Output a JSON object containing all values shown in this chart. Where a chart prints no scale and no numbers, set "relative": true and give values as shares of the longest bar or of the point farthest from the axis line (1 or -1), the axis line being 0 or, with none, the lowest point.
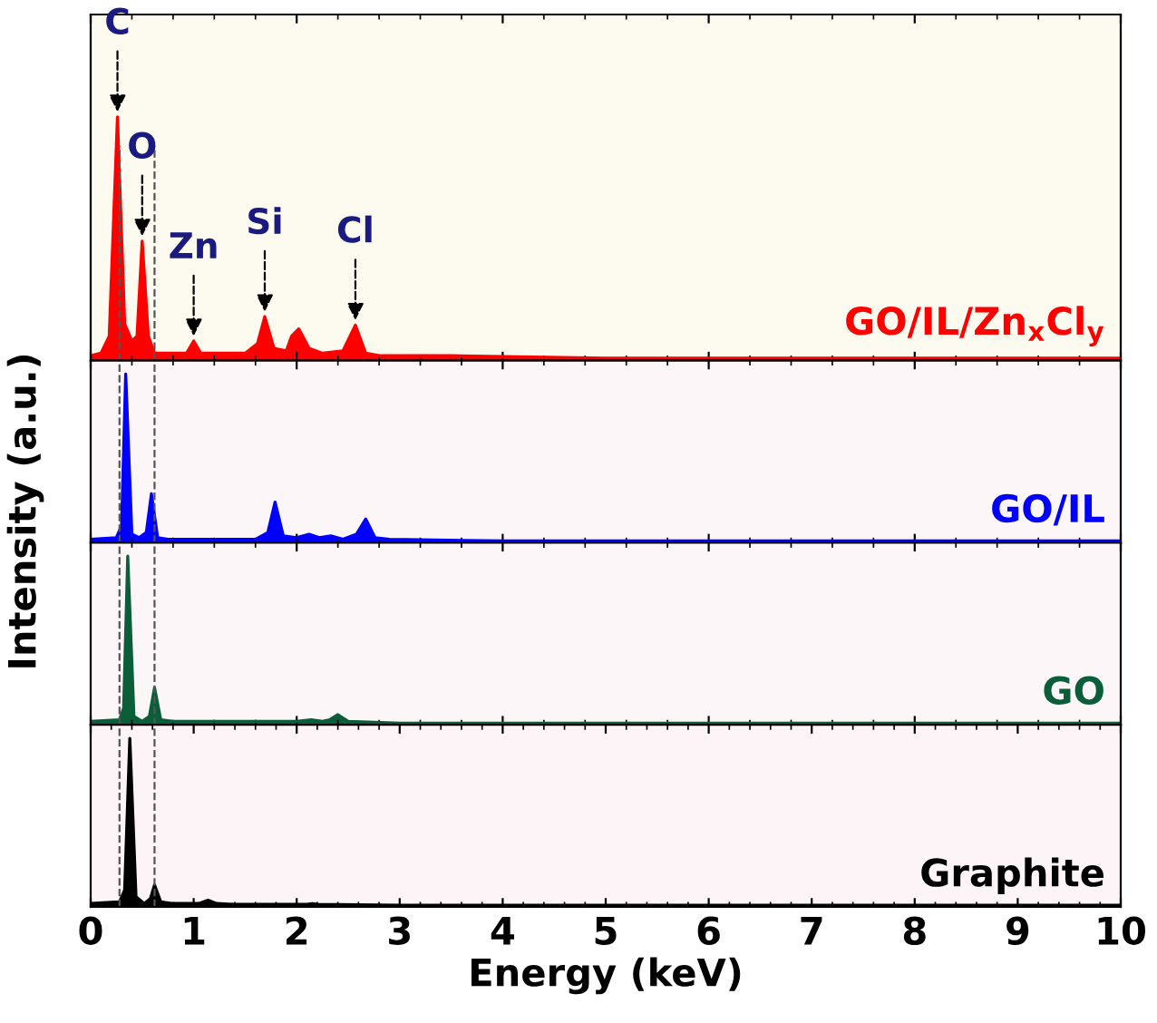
{
  "chart_data": [
    {
      "type": "area",
      "relative": true,
      "xlim": [
        0,
        10
      ],
      "tick_labels": false,
      "ylabel": "Intensity (a.u.)",
      "grid": false,
      "series": [
        {
          "name": "GO/IL/Zn$_{x}$Cl$_{y}$",
          "color": "#ff0000",
          "x": [
            0,
            0.1,
            0.18,
            0.26,
            0.33,
            0.4,
            0.45,
            0.5,
            0.56,
            0.62,
            0.8,
            0.93,
            1.0,
            1.07,
            1.2,
            1.5,
            1.62,
            1.69,
            1.78,
            1.9,
            1.95,
            2.02,
            2.12,
            2.25,
            2.45,
            2.57,
            2.67,
            2.8,
            3.5,
            5,
            7,
            10
          ],
          "values": [
            0.02,
            0.03,
            0.1,
            1,
            0.15,
            0.08,
            0.1,
            0.49,
            0.1,
            0.03,
            0.03,
            0.03,
            0.08,
            0.03,
            0.03,
            0.03,
            0.07,
            0.18,
            0.05,
            0.04,
            0.1,
            0.13,
            0.05,
            0.03,
            0.04,
            0.145,
            0.03,
            0.02,
            0.02,
            0.01,
            0.01,
            0.01
          ]
        }
      ],
      "ref_lines": [
        {
          "axis": "x",
          "value": 0.28,
          "color": "#555555",
          "line_style": "dashed"
        },
        {
          "axis": "x",
          "value": 0.62,
          "color": "#555555",
          "line_style": "dashed"
        }
      ],
      "annotations": [
        {
          "text": "C",
          "x": 0.26,
          "y": 1
        },
        {
          "text": "O",
          "x": 0.5,
          "y": 0.49
        },
        {
          "text": "Zn",
          "x": 1.0,
          "y": 0.08
        },
        {
          "text": "Si",
          "x": 1.69,
          "y": 0.18
        },
        {
          "text": "Cl",
          "x": 2.57,
          "y": 0.145
        }
      ]
    },
    {
      "type": "area",
      "relative": true,
      "xlim": [
        0,
        10
      ],
      "tick_labels": false,
      "grid": false,
      "series": [
        {
          "name": "GO/IL",
          "color": "#0000ff",
          "x": [
            0,
            0.25,
            0.3,
            0.34,
            0.4,
            0.47,
            0.54,
            0.59,
            0.65,
            0.75,
            1.6,
            1.72,
            1.79,
            1.87,
            2.0,
            2.12,
            2.22,
            2.33,
            2.45,
            2.58,
            2.67,
            2.76,
            2.9,
            4,
            10
          ],
          "values": [
            0.02,
            0.03,
            0.1,
            1,
            0.05,
            0.03,
            0.06,
            0.29,
            0.03,
            0.02,
            0.02,
            0.06,
            0.24,
            0.04,
            0.03,
            0.05,
            0.03,
            0.04,
            0.02,
            0.05,
            0.14,
            0.03,
            0.02,
            0.01,
            0.01
          ]
        }
      ],
      "ref_lines": [
        {
          "axis": "x",
          "value": 0.28,
          "color": "#555555",
          "line_style": "dashed"
        },
        {
          "axis": "x",
          "value": 0.62,
          "color": "#555555",
          "line_style": "dashed"
        }
      ]
    },
    {
      "type": "area",
      "relative": true,
      "xlim": [
        0,
        10
      ],
      "tick_labels": false,
      "grid": false,
      "series": [
        {
          "name": "GO",
          "color": "#0b5e3a",
          "x": [
            0,
            0.28,
            0.32,
            0.36,
            0.42,
            0.5,
            0.57,
            0.62,
            0.68,
            0.8,
            1.5,
            2.0,
            2.14,
            2.25,
            2.32,
            2.4,
            2.5,
            3,
            10
          ],
          "values": [
            0.02,
            0.03,
            0.1,
            1,
            0.05,
            0.02,
            0.05,
            0.22,
            0.03,
            0.02,
            0.02,
            0.02,
            0.03,
            0.02,
            0.03,
            0.06,
            0.02,
            0.01,
            0.01
          ]
        }
      ],
      "ref_lines": [
        {
          "axis": "x",
          "value": 0.28,
          "color": "#555555",
          "line_style": "dashed"
        },
        {
          "axis": "x",
          "value": 0.62,
          "color": "#555555",
          "line_style": "dashed"
        }
      ]
    },
    {
      "type": "area",
      "relative": true,
      "xlim": [
        0,
        10
      ],
      "xticks": [
        0,
        1,
        2,
        3,
        4,
        5,
        6,
        7,
        8,
        9,
        10
      ],
      "tick_labels": "x",
      "xlabel": "Energy (keV)",
      "grid": false,
      "series": [
        {
          "name": "Graphite",
          "color": "#000000",
          "x": [
            0,
            0.28,
            0.33,
            0.38,
            0.44,
            0.52,
            0.58,
            0.62,
            0.68,
            0.8,
            1.05,
            1.14,
            1.22,
            1.4,
            2.1,
            2.15,
            2.2,
            3,
            10
          ],
          "values": [
            0.02,
            0.03,
            0.1,
            1,
            0.06,
            0.02,
            0.05,
            0.13,
            0.03,
            0.02,
            0.02,
            0.04,
            0.02,
            0.015,
            0.015,
            0.02,
            0.015,
            0.01,
            0.01
          ]
        }
      ],
      "ref_lines": [
        {
          "axis": "x",
          "value": 0.28,
          "color": "#555555",
          "line_style": "dashed"
        },
        {
          "axis": "x",
          "value": 0.62,
          "color": "#555555",
          "line_style": "dashed"
        }
      ]
    }
  ]
}
